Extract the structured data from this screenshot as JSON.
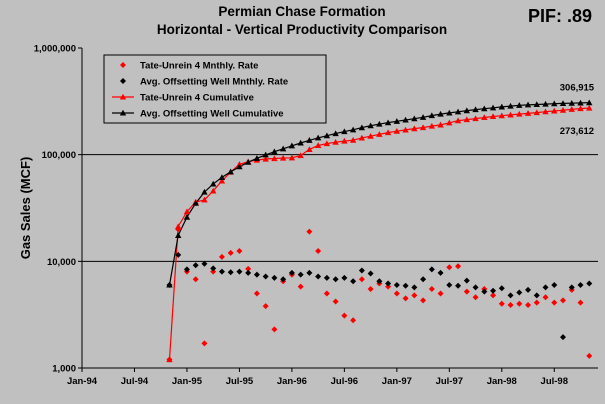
{
  "chart_data": {
    "type": "scatter",
    "title": "Permian Chase Formation",
    "subtitle": "Horizontal - Vertical Productivity Comparison",
    "badge": "PIF: .89",
    "ylabel": "Gas Sales (MCF)",
    "xlabel": "",
    "y_scale": "log",
    "ylim": [
      1000,
      1000000
    ],
    "xlim": [
      "1994-01",
      "1998-12"
    ],
    "grid": "horizontal major lines",
    "legend_placement": "top-left",
    "y_ticks": [
      "1,000",
      "10,000",
      "100,000",
      "1,000,000"
    ],
    "x_ticks": [
      "Jan-94",
      "Jul-94",
      "Jan-95",
      "Jul-95",
      "Jan-96",
      "Jul-96",
      "Jan-97",
      "Jul-97",
      "Jan-98",
      "Jul-98"
    ],
    "x_tick_values": [
      "1994-01",
      "1994-07",
      "1995-01",
      "1995-07",
      "1996-01",
      "1996-07",
      "1997-01",
      "1997-07",
      "1998-01",
      "1998-07"
    ],
    "annotations": [
      {
        "text": "306,915",
        "date": "1998-09",
        "value": 306915
      },
      {
        "text": "273,612",
        "date": "1998-09",
        "value": 273612
      }
    ],
    "colors": {
      "tate": "#ff0000",
      "offset": "#000000",
      "background": "#c0c0c0",
      "grid": "#000000"
    },
    "series": [
      {
        "name": "Tate-Unrein 4 Mnthly. Rate",
        "marker": "diamond",
        "color": "#ff0000",
        "line": false,
        "points": [
          [
            "1994-11",
            1200
          ],
          [
            "1994-12",
            20000
          ],
          [
            "1995-01",
            8000
          ],
          [
            "1995-02",
            6800
          ],
          [
            "1995-03",
            1700
          ],
          [
            "1995-04",
            8000
          ],
          [
            "1995-05",
            11000
          ],
          [
            "1995-06",
            12000
          ],
          [
            "1995-07",
            12500
          ],
          [
            "1995-08",
            8500
          ],
          [
            "1995-09",
            5000
          ],
          [
            "1995-10",
            3800
          ],
          [
            "1995-11",
            2300
          ],
          [
            "1995-12",
            6500
          ],
          [
            "1996-01",
            7500
          ],
          [
            "1996-02",
            5800
          ],
          [
            "1996-03",
            19000
          ],
          [
            "1996-04",
            12500
          ],
          [
            "1996-05",
            5000
          ],
          [
            "1996-06",
            4200
          ],
          [
            "1996-07",
            3100
          ],
          [
            "1996-08",
            2800
          ],
          [
            "1996-09",
            6800
          ],
          [
            "1996-10",
            5500
          ],
          [
            "1996-11",
            6200
          ],
          [
            "1996-12",
            5800
          ],
          [
            "1997-01",
            5000
          ],
          [
            "1997-02",
            4500
          ],
          [
            "1997-03",
            4800
          ],
          [
            "1997-04",
            4300
          ],
          [
            "1997-05",
            5500
          ],
          [
            "1997-06",
            5000
          ],
          [
            "1997-07",
            8800
          ],
          [
            "1997-08",
            9000
          ],
          [
            "1997-09",
            5200
          ],
          [
            "1997-10",
            4600
          ],
          [
            "1997-11",
            5500
          ],
          [
            "1997-12",
            4800
          ],
          [
            "1998-01",
            4000
          ],
          [
            "1998-02",
            3900
          ],
          [
            "1998-03",
            4000
          ],
          [
            "1998-04",
            3900
          ],
          [
            "1998-05",
            4100
          ],
          [
            "1998-06",
            4600
          ],
          [
            "1998-07",
            4100
          ],
          [
            "1998-08",
            4300
          ],
          [
            "1998-09",
            5400
          ],
          [
            "1998-10",
            4100
          ],
          [
            "1998-11",
            1300
          ]
        ]
      },
      {
        "name": "Avg. Offsetting Well Mnthly. Rate",
        "marker": "diamond",
        "color": "#000000",
        "line": false,
        "points": [
          [
            "1994-11",
            6000
          ],
          [
            "1994-12",
            11500
          ],
          [
            "1995-01",
            8400
          ],
          [
            "1995-02",
            9200
          ],
          [
            "1995-03",
            9500
          ],
          [
            "1995-04",
            8600
          ],
          [
            "1995-05",
            8000
          ],
          [
            "1995-06",
            7900
          ],
          [
            "1995-07",
            8000
          ],
          [
            "1995-08",
            7800
          ],
          [
            "1995-09",
            7500
          ],
          [
            "1995-10",
            7200
          ],
          [
            "1995-11",
            7000
          ],
          [
            "1995-12",
            6800
          ],
          [
            "1996-01",
            7800
          ],
          [
            "1996-02",
            7500
          ],
          [
            "1996-03",
            7800
          ],
          [
            "1996-04",
            7200
          ],
          [
            "1996-05",
            7000
          ],
          [
            "1996-06",
            6800
          ],
          [
            "1996-07",
            7000
          ],
          [
            "1996-08",
            6500
          ],
          [
            "1996-09",
            8200
          ],
          [
            "1996-10",
            7700
          ],
          [
            "1996-11",
            6500
          ],
          [
            "1996-12",
            6200
          ],
          [
            "1997-01",
            6000
          ],
          [
            "1997-02",
            5900
          ],
          [
            "1997-03",
            5700
          ],
          [
            "1997-04",
            6800
          ],
          [
            "1997-05",
            8400
          ],
          [
            "1997-06",
            7800
          ],
          [
            "1997-07",
            6000
          ],
          [
            "1997-08",
            5900
          ],
          [
            "1997-09",
            6600
          ],
          [
            "1997-10",
            5700
          ],
          [
            "1997-11",
            5200
          ],
          [
            "1997-12",
            5300
          ],
          [
            "1998-01",
            5600
          ],
          [
            "1998-02",
            4800
          ],
          [
            "1998-03",
            5100
          ],
          [
            "1998-04",
            5400
          ],
          [
            "1998-05",
            4800
          ],
          [
            "1998-06",
            5700
          ],
          [
            "1998-07",
            6000
          ],
          [
            "1998-08",
            1950
          ],
          [
            "1998-09",
            5700
          ],
          [
            "1998-10",
            6000
          ],
          [
            "1998-11",
            6200
          ]
        ]
      },
      {
        "name": "Tate-Unrein 4 Cumulative",
        "marker": "triangle",
        "color": "#ff0000",
        "line": true,
        "points": [
          [
            "1994-11",
            1200
          ],
          [
            "1994-12",
            21200
          ],
          [
            "1995-01",
            29200
          ],
          [
            "1995-02",
            36000
          ],
          [
            "1995-03",
            37700
          ],
          [
            "1995-04",
            45700
          ],
          [
            "1995-05",
            56700
          ],
          [
            "1995-06",
            68700
          ],
          [
            "1995-07",
            81200
          ],
          [
            "1995-08",
            86000
          ],
          [
            "1995-09",
            89000
          ],
          [
            "1995-10",
            91000
          ],
          [
            "1995-11",
            92000
          ],
          [
            "1995-12",
            93000
          ],
          [
            "1996-01",
            93500
          ],
          [
            "1996-02",
            98000
          ],
          [
            "1996-03",
            112000
          ],
          [
            "1996-04",
            122000
          ],
          [
            "1996-05",
            127000
          ],
          [
            "1996-06",
            131000
          ],
          [
            "1996-07",
            134000
          ],
          [
            "1996-08",
            136800
          ],
          [
            "1996-09",
            143600
          ],
          [
            "1996-10",
            149100
          ],
          [
            "1996-11",
            155300
          ],
          [
            "1996-12",
            161100
          ],
          [
            "1997-01",
            166100
          ],
          [
            "1997-02",
            170600
          ],
          [
            "1997-03",
            175400
          ],
          [
            "1997-04",
            179700
          ],
          [
            "1997-05",
            185200
          ],
          [
            "1997-06",
            190200
          ],
          [
            "1997-07",
            199000
          ],
          [
            "1997-08",
            208000
          ],
          [
            "1997-09",
            213200
          ],
          [
            "1997-10",
            217800
          ],
          [
            "1997-11",
            223300
          ],
          [
            "1997-12",
            228100
          ],
          [
            "1998-01",
            232100
          ],
          [
            "1998-02",
            236000
          ],
          [
            "1998-03",
            240000
          ],
          [
            "1998-04",
            243900
          ],
          [
            "1998-05",
            248000
          ],
          [
            "1998-06",
            252600
          ],
          [
            "1998-07",
            256700
          ],
          [
            "1998-08",
            261000
          ],
          [
            "1998-09",
            266400
          ],
          [
            "1998-10",
            270500
          ],
          [
            "1998-11",
            273612
          ]
        ]
      },
      {
        "name": "Avg. Offsetting Well Cumulative",
        "marker": "triangle",
        "color": "#000000",
        "line": true,
        "points": [
          [
            "1994-11",
            6000
          ],
          [
            "1994-12",
            17500
          ],
          [
            "1995-01",
            25900
          ],
          [
            "1995-02",
            35100
          ],
          [
            "1995-03",
            44600
          ],
          [
            "1995-04",
            53200
          ],
          [
            "1995-05",
            61200
          ],
          [
            "1995-06",
            69100
          ],
          [
            "1995-07",
            77100
          ],
          [
            "1995-08",
            84900
          ],
          [
            "1995-09",
            92400
          ],
          [
            "1995-10",
            99600
          ],
          [
            "1995-11",
            106600
          ],
          [
            "1995-12",
            113400
          ],
          [
            "1996-01",
            121200
          ],
          [
            "1996-02",
            128700
          ],
          [
            "1996-03",
            136500
          ],
          [
            "1996-04",
            143700
          ],
          [
            "1996-05",
            150700
          ],
          [
            "1996-06",
            157500
          ],
          [
            "1996-07",
            164500
          ],
          [
            "1996-08",
            171000
          ],
          [
            "1996-09",
            179200
          ],
          [
            "1996-10",
            186900
          ],
          [
            "1996-11",
            193400
          ],
          [
            "1996-12",
            199600
          ],
          [
            "1997-01",
            205600
          ],
          [
            "1997-02",
            211500
          ],
          [
            "1997-03",
            217200
          ],
          [
            "1997-04",
            224000
          ],
          [
            "1997-05",
            232400
          ],
          [
            "1997-06",
            240200
          ],
          [
            "1997-07",
            246200
          ],
          [
            "1997-08",
            252100
          ],
          [
            "1997-09",
            258700
          ],
          [
            "1997-10",
            264400
          ],
          [
            "1997-11",
            269600
          ],
          [
            "1997-12",
            274900
          ],
          [
            "1998-01",
            280500
          ],
          [
            "1998-02",
            285300
          ],
          [
            "1998-03",
            290400
          ],
          [
            "1998-04",
            293000
          ],
          [
            "1998-05",
            295500
          ],
          [
            "1998-06",
            298000
          ],
          [
            "1998-07",
            300500
          ],
          [
            "1998-08",
            302400
          ],
          [
            "1998-09",
            304000
          ],
          [
            "1998-10",
            305500
          ],
          [
            "1998-11",
            306915
          ]
        ]
      }
    ]
  }
}
